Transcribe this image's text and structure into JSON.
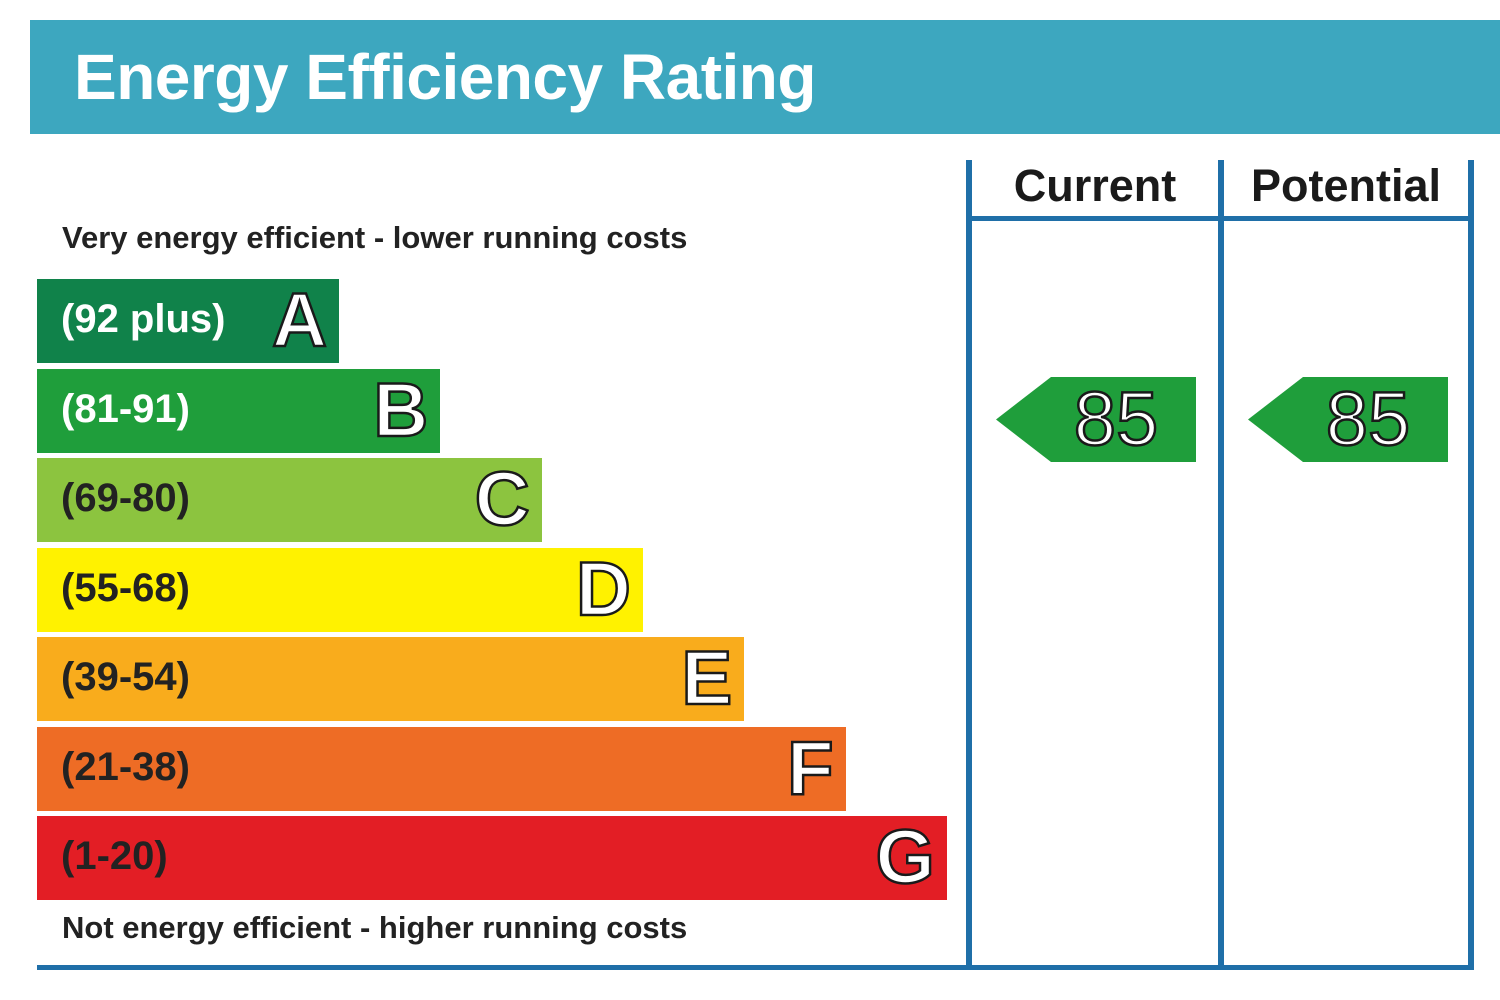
{
  "title": "Energy Efficiency Rating",
  "top_note": "Very energy efficient - lower running costs",
  "bottom_note": "Not energy efficient - higher running costs",
  "columns": {
    "current": "Current",
    "potential": "Potential"
  },
  "colors": {
    "header": "#3da7bf",
    "frame": "#1f6fa8"
  },
  "chart_data": {
    "type": "bar",
    "categories": [
      "A",
      "B",
      "C",
      "D",
      "E",
      "F",
      "G"
    ],
    "bands": [
      {
        "letter": "A",
        "range": "(92 plus)",
        "color": "#10824a",
        "text_color": "#ffffff"
      },
      {
        "letter": "B",
        "range": "(81-91)",
        "color": "#1f9e3b",
        "text_color": "#ffffff"
      },
      {
        "letter": "C",
        "range": "(69-80)",
        "color": "#8cc43f",
        "text_color": "#222222"
      },
      {
        "letter": "D",
        "range": "(55-68)",
        "color": "#fff200",
        "text_color": "#222222"
      },
      {
        "letter": "E",
        "range": "(39-54)",
        "color": "#f9ac1c",
        "text_color": "#222222"
      },
      {
        "letter": "F",
        "range": "(21-38)",
        "color": "#ee6c25",
        "text_color": "#222222"
      },
      {
        "letter": "G",
        "range": "(1-20)",
        "color": "#e31e25",
        "text_color": "#222222"
      }
    ],
    "current": {
      "value": 85,
      "band": "B",
      "color": "#1f9e3b"
    },
    "potential": {
      "value": 85,
      "band": "B",
      "color": "#1f9e3b"
    }
  }
}
